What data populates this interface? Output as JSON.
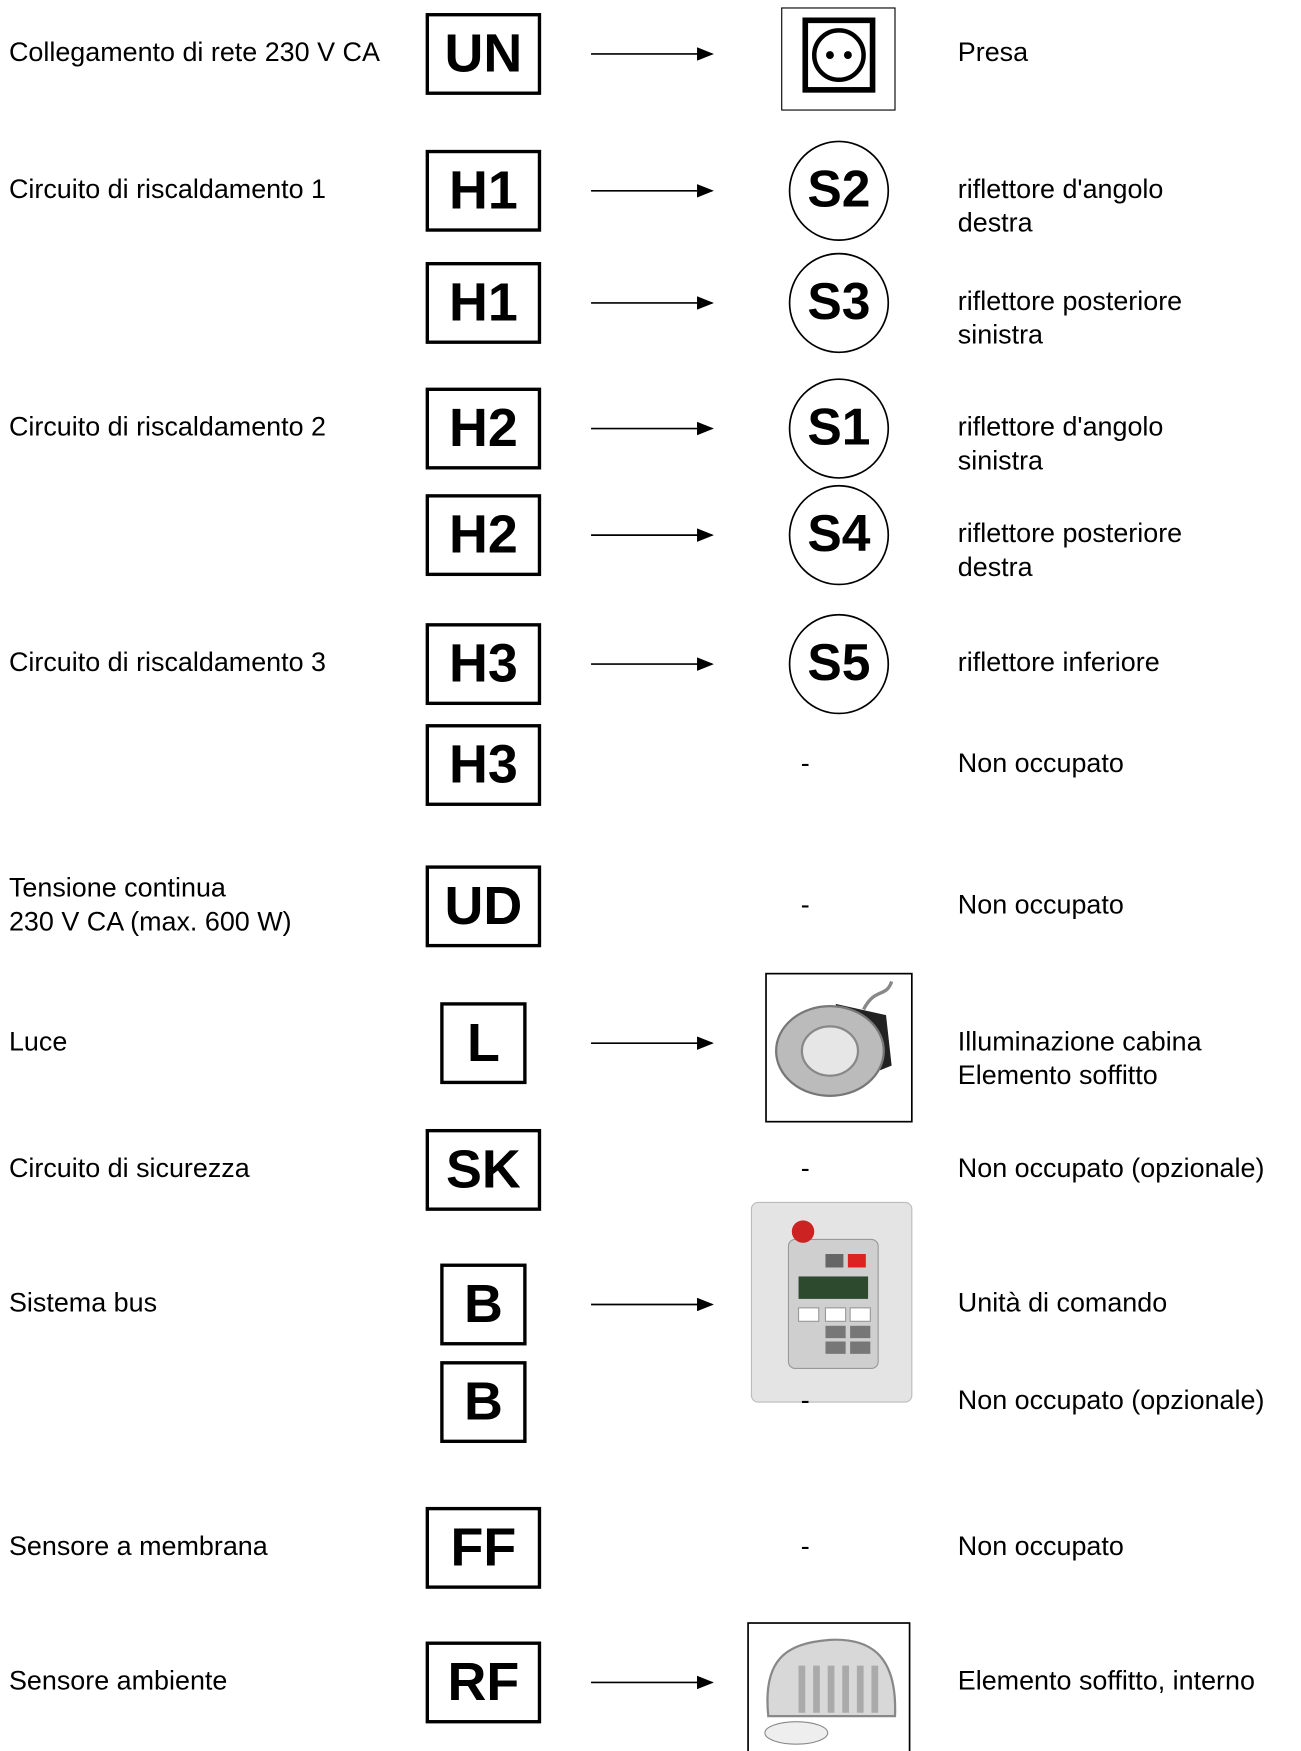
{
  "rows": [
    {
      "label": [
        "Collegamento di rete 230 V CA"
      ],
      "code": "UN",
      "arrow": true,
      "target": {
        "kind": "socket"
      },
      "desc": [
        "Presa"
      ]
    },
    {
      "label": [
        "Circuito di riscaldamento 1"
      ],
      "code": "H1",
      "arrow": true,
      "target": {
        "kind": "circle",
        "text": "S2"
      },
      "desc": [
        "riflettore d'angolo",
        "destra"
      ]
    },
    {
      "code": "H1",
      "arrow": true,
      "target": {
        "kind": "circle",
        "text": "S3"
      },
      "desc": [
        "riflettore posteriore",
        "sinistra"
      ]
    },
    {
      "label": [
        "Circuito di riscaldamento 2"
      ],
      "code": "H2",
      "arrow": true,
      "target": {
        "kind": "circle",
        "text": "S1"
      },
      "desc": [
        "riflettore d'angolo",
        "sinistra"
      ]
    },
    {
      "code": "H2",
      "arrow": true,
      "target": {
        "kind": "circle",
        "text": "S4"
      },
      "desc": [
        "riflettore posteriore",
        "destra"
      ]
    },
    {
      "label": [
        "Circuito di riscaldamento 3"
      ],
      "code": "H3",
      "arrow": true,
      "target": {
        "kind": "circle",
        "text": "S5"
      },
      "desc": [
        "riflettore inferiore"
      ]
    },
    {
      "code": "H3",
      "arrow": false,
      "target": {
        "kind": "dash",
        "text": "-"
      },
      "desc": [
        "Non occupato"
      ]
    },
    {
      "label": [
        "Tensione continua",
        "230 V CA (max. 600 W)"
      ],
      "code": "UD",
      "arrow": false,
      "target": {
        "kind": "dash",
        "text": "-"
      },
      "desc": [
        "Non occupato"
      ]
    },
    {
      "label": [
        "Luce"
      ],
      "code": "L",
      "arrow": true,
      "target": {
        "kind": "lamp"
      },
      "desc": [
        "Illuminazione cabina",
        "Elemento soffitto"
      ]
    },
    {
      "label": [
        "Circuito di sicurezza"
      ],
      "code": "SK",
      "arrow": false,
      "target": {
        "kind": "dash",
        "text": "-"
      },
      "desc": [
        "Non occupato (opzionale)"
      ]
    },
    {
      "label": [
        "Sistema bus"
      ],
      "code": "B",
      "arrow": true,
      "target": {
        "kind": "control"
      },
      "desc": [
        "Unità di comando"
      ]
    },
    {
      "code": "B",
      "arrow": false,
      "target": {
        "kind": "dash",
        "text": "-"
      },
      "desc": [
        "Non occupato (opzionale)"
      ]
    },
    {
      "label": [
        "Sensore a membrana"
      ],
      "code": "FF",
      "arrow": false,
      "target": {
        "kind": "dash",
        "text": "-"
      },
      "desc": [
        "Non occupato"
      ]
    },
    {
      "label": [
        "Sensore ambiente"
      ],
      "code": "RF",
      "arrow": true,
      "target": {
        "kind": "sensor"
      },
      "desc": [
        "Elemento soffitto, interno"
      ]
    }
  ]
}
